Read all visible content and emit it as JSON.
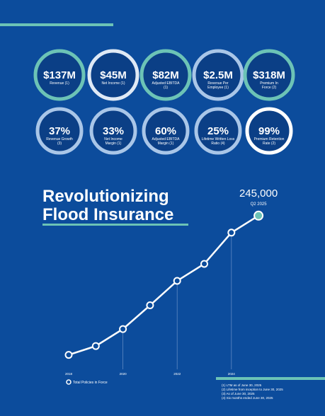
{
  "metrics": [
    {
      "value": "$137M",
      "label": "Revenue (1)"
    },
    {
      "value": "$45M",
      "label": "Net Income (1)"
    },
    {
      "value": "$82M",
      "label": "Adjusted EBITDA (1)"
    },
    {
      "value": "$2.5M",
      "label": "Revenue Per Employee (1)"
    },
    {
      "value": "$318M",
      "label": "Premium In Force (2)"
    },
    {
      "value": "37%",
      "label": "Revenue Growth (3)"
    },
    {
      "value": "33%",
      "label": "Net Income Margin (1)"
    },
    {
      "value": "60%",
      "label": "Adjusted EBITDA Margin (1)"
    },
    {
      "value": "25%",
      "label": "Lifetime Written Loss Ratio (4)"
    },
    {
      "value": "99%",
      "label": "Premium Retention Rate (2)"
    }
  ],
  "chart_data": {
    "type": "line",
    "title": "Revolutionizing Flood Insurance",
    "categories": [
      "2018",
      null,
      "2020",
      null,
      "2022",
      null,
      "2024",
      "Q2 2025"
    ],
    "series": [
      {
        "name": "Total Policies in Force",
        "color": "#ffffff",
        "values": [
          40000,
          53000,
          78000,
          113000,
          149000,
          174000,
          220000,
          245000
        ],
        "value_labels": [
          null,
          null,
          null,
          null,
          null,
          null,
          null,
          "245,000"
        ]
      }
    ],
    "ylim": [
      0,
      250000
    ]
  },
  "footnotes": [
    "(1) LTM as of June 30, 2025",
    "(2) Lifetime from inception to June 30, 2025",
    "(3) As of June 30, 2025",
    "(4) Six months ended June 30, 2025"
  ]
}
